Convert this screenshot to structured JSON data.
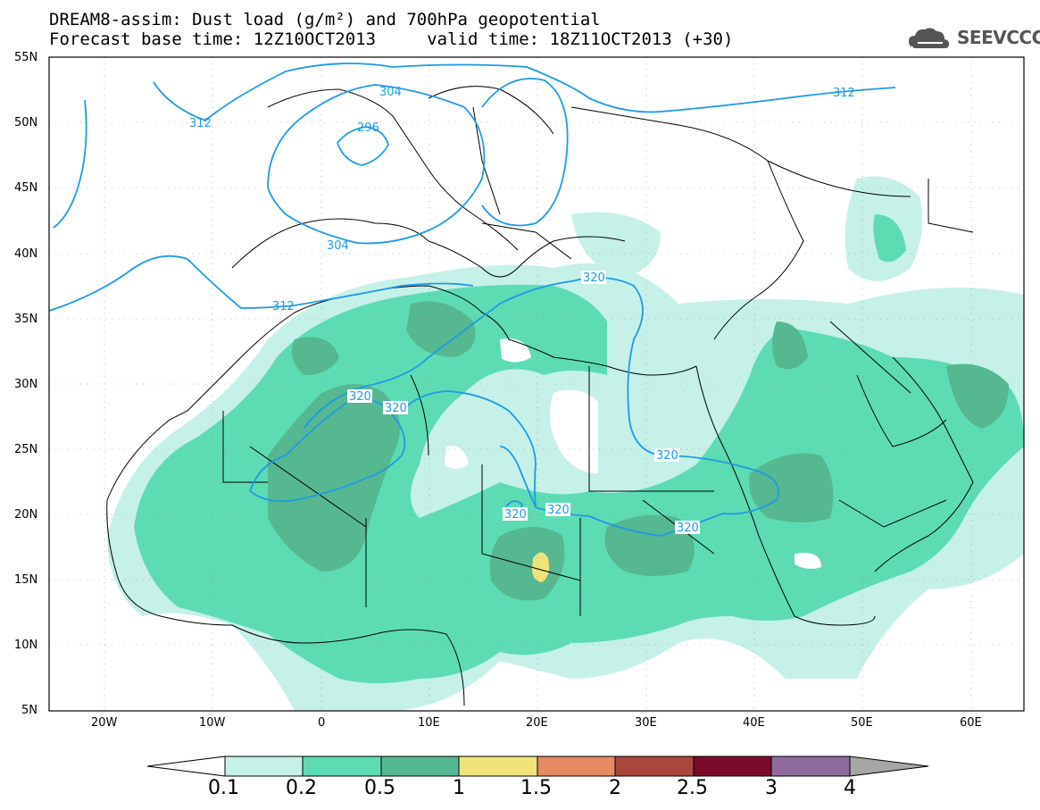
{
  "header": {
    "title_line1": "DREAM8-assim: Dust load (g/m²) and 700hPa geopotential",
    "title_line2": "Forecast base time: 12Z10OCT2013     valid time: 18Z11OCT2013 (+30)",
    "logo_text": "SEEVCCC"
  },
  "axes": {
    "lat_labels": [
      "55N",
      "50N",
      "45N",
      "40N",
      "35N",
      "30N",
      "25N",
      "20N",
      "15N",
      "10N",
      "5N"
    ],
    "lon_labels": [
      "20W",
      "10W",
      "0",
      "10E",
      "20E",
      "30E",
      "40E",
      "50E",
      "60E"
    ]
  },
  "contours": {
    "labels": [
      "312",
      "304",
      "296",
      "304",
      "312",
      "312",
      "320",
      "320",
      "320",
      "320",
      "320",
      "320",
      "320"
    ]
  },
  "colorbar": {
    "labels": [
      "0.1",
      "0.2",
      "0.5",
      "1",
      "1.5",
      "2",
      "2.5",
      "3",
      "4"
    ],
    "colors": [
      "#c5f1e8",
      "#5ddcb4",
      "#56b890",
      "#f0e37a",
      "#e58a62",
      "#a9473d",
      "#7a0a2a",
      "#8e6a9e",
      "#a6a6a6"
    ]
  },
  "colors": {
    "dust_light": "#c5f1e8",
    "dust_medium": "#5ddcb4",
    "dust_heavy": "#56b890",
    "dust_peak": "#f0e37a",
    "contour_line": "#1e9ae6",
    "coastline": "#000000"
  }
}
